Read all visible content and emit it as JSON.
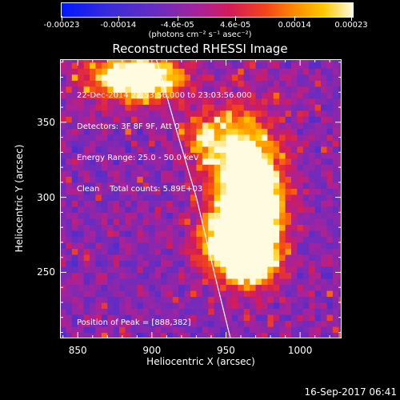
{
  "chart_data": {
    "type": "heatmap",
    "title": "Reconstructed RHESSI Image",
    "xlabel": "Heliocentric X (arcsec)",
    "ylabel": "Heliocentric Y (arcsec)",
    "xlim": [
      838,
      1028
    ],
    "ylim": [
      206,
      392
    ],
    "xticks": [
      850,
      900,
      950,
      1000
    ],
    "yticks": [
      250,
      300,
      350
    ],
    "colorbar": {
      "ticks": [
        -0.00023,
        -0.00014,
        -4.6e-05,
        4.6e-05,
        0.00014,
        0.00023
      ],
      "tick_labels": [
        "-0.00023",
        "-0.00014",
        "-4.6e-05",
        "4.6e-05",
        "0.00014",
        "0.00023"
      ],
      "units_label": "(photons cm⁻² s⁻¹ asec⁻²)",
      "colormap": "blue-purple-red-orange-yellow-white"
    },
    "info_lines": [
      "22-Dec-2014 22:53:56.000 to 23:03:56.000",
      "Detectors: 3F 8F 9F, Att 0",
      "Energy Range: 25.0 - 50.0 keV",
      "Clean    Total counts: 5.89E+03"
    ],
    "peak_label": "Position of Peak = [888,382]",
    "peak_position": [
      888,
      382
    ],
    "limb_curve": [
      [
        903,
        392
      ],
      [
        915,
        350
      ],
      [
        930,
        300
      ],
      [
        942,
        250
      ],
      [
        953,
        206
      ]
    ],
    "emission_blobs": [
      {
        "x": 962,
        "y": 310,
        "sx": 14,
        "sy": 30,
        "amp": 0.95
      },
      {
        "x": 955,
        "y": 270,
        "sx": 16,
        "sy": 14,
        "amp": 0.8
      },
      {
        "x": 968,
        "y": 255,
        "sx": 12,
        "sy": 10,
        "amp": 0.6
      },
      {
        "x": 890,
        "y": 380,
        "sx": 20,
        "sy": 10,
        "amp": 1.0
      },
      {
        "x": 935,
        "y": 340,
        "sx": 10,
        "sy": 12,
        "amp": 0.45
      },
      {
        "x": 978,
        "y": 295,
        "sx": 10,
        "sy": 20,
        "amp": 0.45
      }
    ]
  },
  "footer": {
    "timestamp": "16-Sep-2017 06:41"
  }
}
